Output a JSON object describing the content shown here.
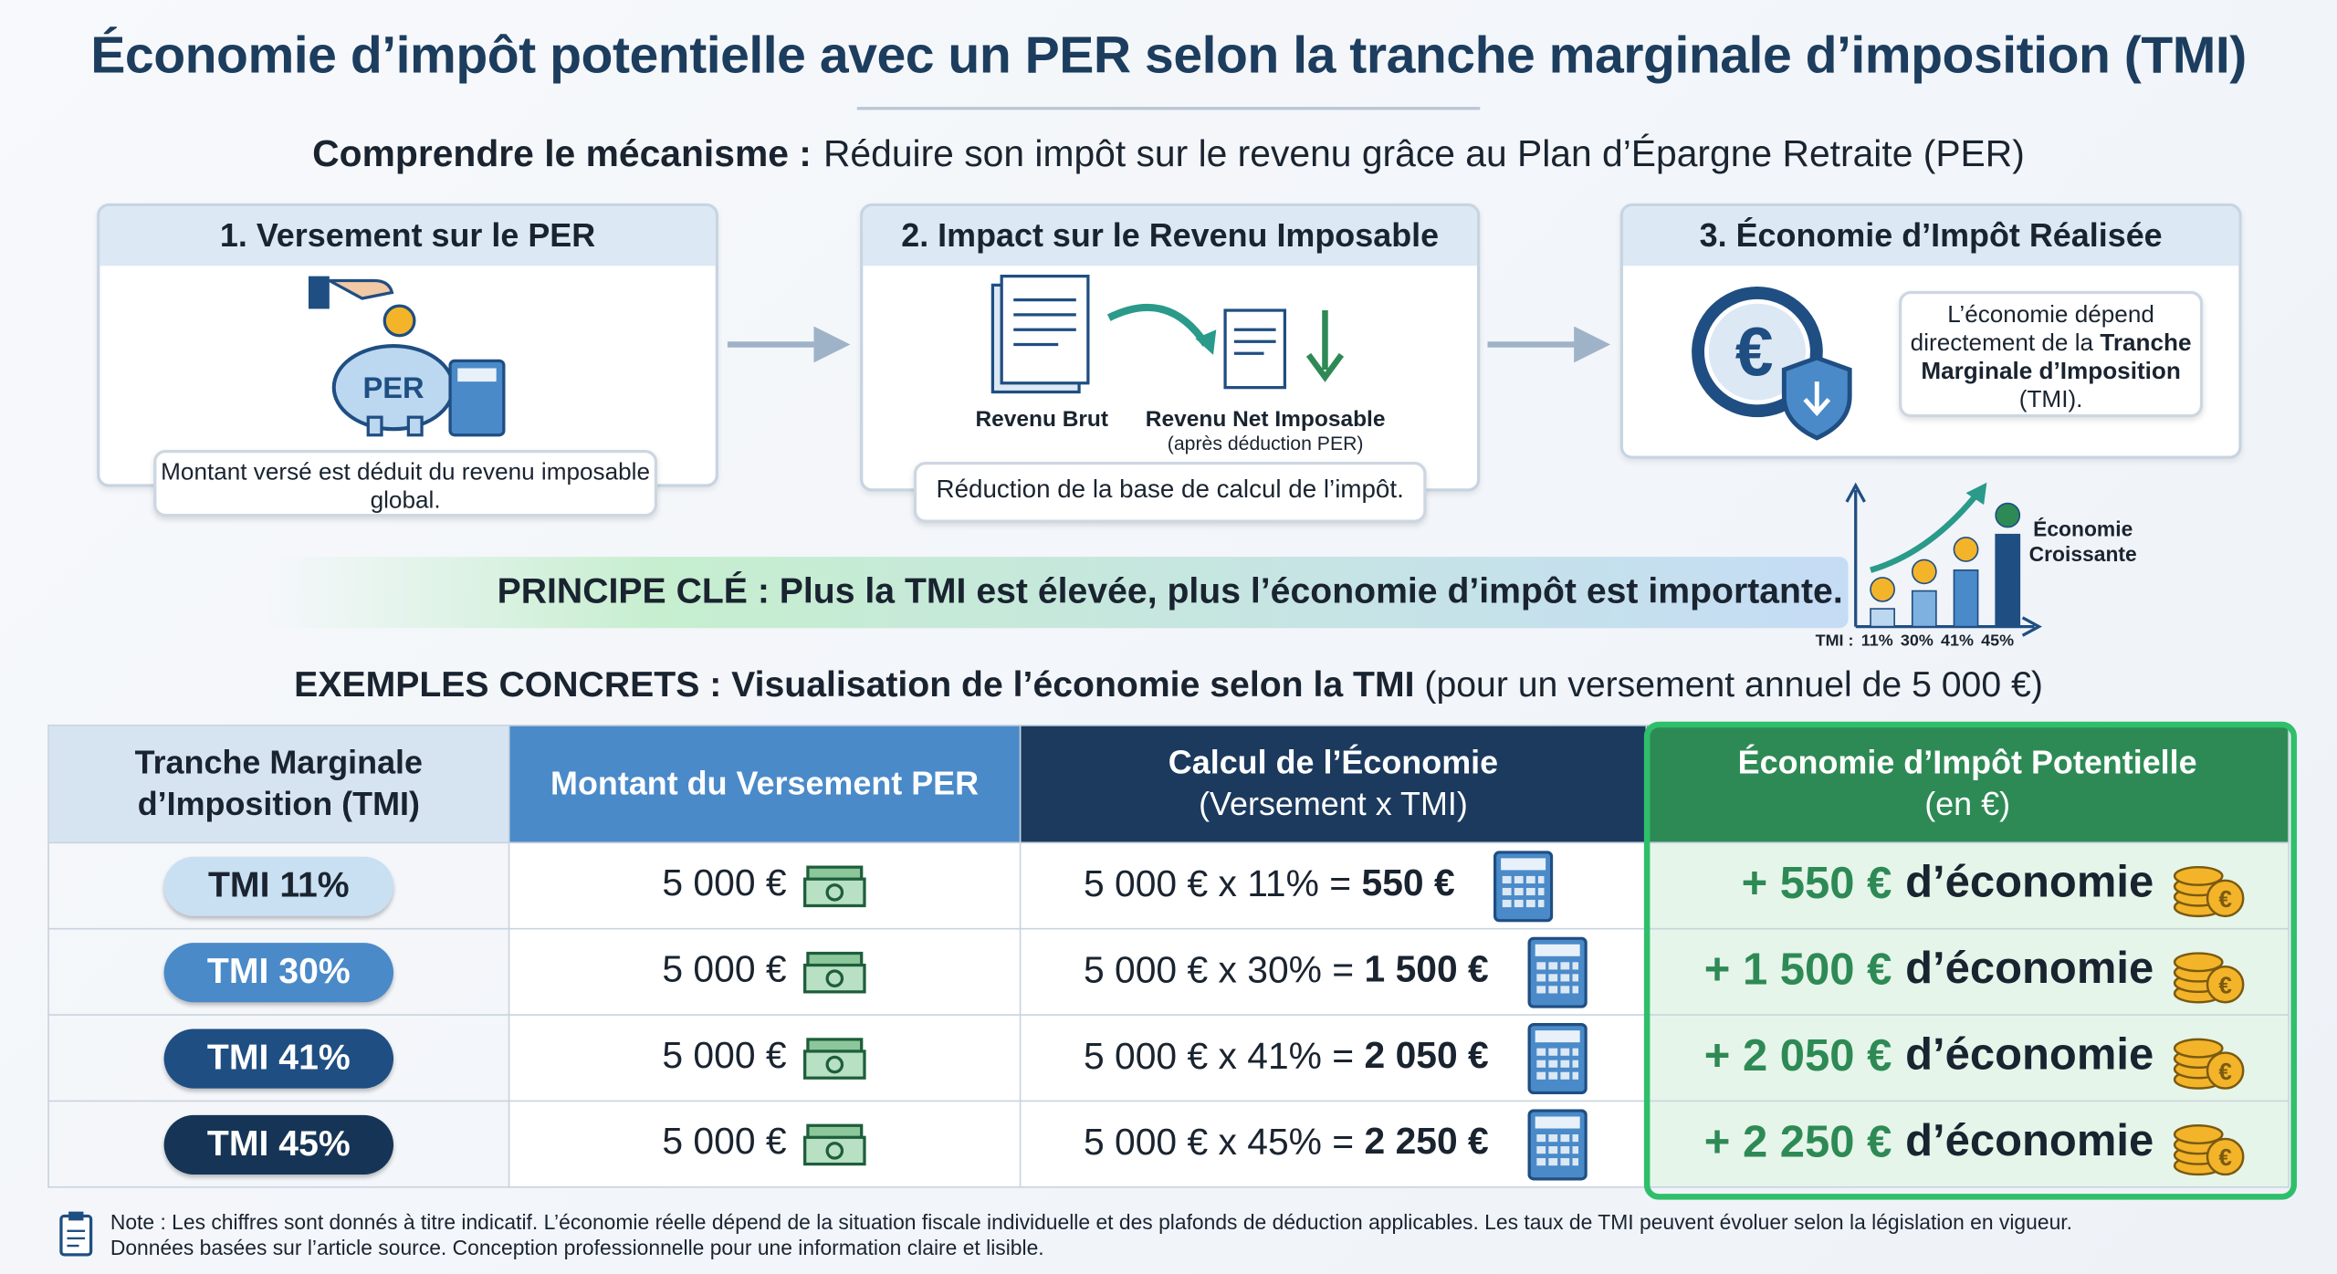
{
  "title": "Économie d’impôt potentielle avec un PER selon la tranche marginale d’imposition (TMI)",
  "subtitle": {
    "lead": "Comprendre le mécanisme :",
    "text": "Réduire son impôt sur le revenu grâce au Plan d’Épargne Retraite (PER)"
  },
  "steps": [
    {
      "title": "1. Versement sur le PER",
      "icon_label": "PER",
      "caption": "Montant versé est déduit du revenu imposable global."
    },
    {
      "title": "2. Impact sur le Revenu Imposable",
      "label_left": "Revenu Brut",
      "label_right": "Revenu Net Imposable",
      "sublabel": "(après déduction PER)",
      "caption": "Réduction de la base de calcul de l’impôt."
    },
    {
      "title": "3. Économie d’Impôt Réalisée",
      "text": "L’économie dépend directement de la",
      "text_bold": "Tranche Marginale d’Imposition",
      "text_end": "(TMI)."
    }
  ],
  "principle": "PRINCIPE CLÉ : Plus la TMI est élevée, plus l’économie d’impôt est importante.",
  "mini_chart": {
    "title": "Économie Croissante",
    "axis_label": "TMI :",
    "categories": [
      "11%",
      "30%",
      "41%",
      "45%"
    ]
  },
  "examples": {
    "lead": "EXEMPLES CONCRETS :",
    "bold": "Visualisation de l’économie selon la TMI",
    "rest": "(pour un versement annuel de 5 000 €)"
  },
  "table": {
    "headers": [
      [
        "Tranche Marginale",
        "d’Imposition (TMI)"
      ],
      [
        "Montant du Versement PER"
      ],
      [
        "Calcul de l’Économie",
        "(Versement x TMI)"
      ],
      [
        "Économie d’Impôt Potentielle",
        "(en €)"
      ]
    ],
    "rows": [
      [
        "TMI 11%",
        "5 000 €",
        "5 000 € x 11% =",
        "550 €",
        "+ 550 €",
        "d’économie"
      ],
      [
        "TMI 30%",
        "5 000 €",
        "5 000 € x 30% =",
        "1 500 €",
        "+ 1 500 €",
        "d’économie"
      ],
      [
        "TMI 41%",
        "5 000 €",
        "5 000 € x 41% =",
        "2 050 €",
        "+ 2 050 €",
        "d’économie"
      ],
      [
        "TMI 45%",
        "5 000 €",
        "5 000 € x 45% =",
        "2 250 €",
        "+ 2 250 €",
        "d’économie"
      ]
    ]
  },
  "note": [
    "Note : Les chiffres sont donnés à titre indicatif. L’économie réelle dépend de la situation fiscale individuelle et des plafonds de déduction applicables. Les taux de TMI peuvent évoluer selon la législation en vigueur.",
    "Données basées sur l’article source. Conception professionnelle pour une information claire et lisible."
  ]
}
